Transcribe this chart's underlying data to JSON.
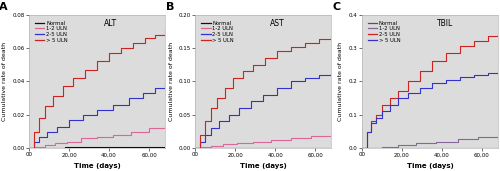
{
  "panels": [
    "A",
    "B",
    "C"
  ],
  "panel_keys": [
    "ALT",
    "AST",
    "TBIL"
  ],
  "xlabel": "Time (days)",
  "ylabel": "Cumulative rate of death",
  "xmax": 68000,
  "xmin": 0,
  "xticks": [
    0,
    20000,
    40000,
    60000
  ],
  "xticklabels": [
    "00",
    "20,00",
    "40,00",
    "60,00"
  ],
  "panel_bg": "#dcdcdc",
  "fig_bg": "#ffffff",
  "ALT": {
    "ylim": [
      0,
      0.08
    ],
    "yticks": [
      0.0,
      0.02,
      0.04,
      0.06,
      0.08
    ],
    "yticklabels": [
      "0.00",
      "0.02",
      "0.04",
      "0.06",
      "0.08"
    ],
    "legend_labels": [
      "Normal",
      "1-2 ULN",
      "2-5 ULN",
      "> 5 ULN"
    ],
    "colors": [
      "#111111",
      "#dd6699",
      "#3333cc",
      "#cc2222"
    ],
    "curves": {
      "Normal": {
        "x": [
          0,
          3000,
          8000,
          12000,
          18000,
          25000,
          33000,
          42000,
          52000,
          62000,
          68000
        ],
        "y": [
          0,
          0.0002,
          0.0003,
          0.0004,
          0.0005,
          0.0006,
          0.0007,
          0.0008,
          0.0009,
          0.001,
          0.001
        ]
      },
      "1-2 ULN": {
        "x": [
          0,
          3000,
          8000,
          13000,
          19000,
          26000,
          34000,
          42000,
          51000,
          60000,
          68000
        ],
        "y": [
          0,
          0.001,
          0.002,
          0.003,
          0.004,
          0.006,
          0.007,
          0.008,
          0.01,
          0.012,
          0.014
        ]
      },
      "2-5 ULN": {
        "x": [
          0,
          2500,
          5000,
          9000,
          14000,
          20000,
          27000,
          34000,
          42000,
          50000,
          57000,
          63000,
          68000
        ],
        "y": [
          0,
          0.004,
          0.007,
          0.01,
          0.013,
          0.017,
          0.02,
          0.023,
          0.026,
          0.03,
          0.033,
          0.036,
          0.04
        ]
      },
      "> 5 ULN": {
        "x": [
          0,
          2500,
          5000,
          8000,
          12000,
          17000,
          22000,
          28000,
          34000,
          40000,
          46000,
          52000,
          58000,
          63000,
          68000
        ],
        "y": [
          0,
          0.01,
          0.018,
          0.025,
          0.031,
          0.037,
          0.042,
          0.047,
          0.052,
          0.057,
          0.06,
          0.063,
          0.066,
          0.068,
          0.072
        ]
      }
    }
  },
  "AST": {
    "ylim": [
      0,
      0.2
    ],
    "yticks": [
      0.0,
      0.05,
      0.1,
      0.15,
      0.2
    ],
    "yticklabels": [
      "0.00",
      "0.05",
      "0.10",
      "0.15",
      "0.20"
    ],
    "legend_labels": [
      "Normal",
      "1-2 ULN",
      "2-5 ULN",
      "> 5 ULN"
    ],
    "colors": [
      "#111111",
      "#dd6699",
      "#3333cc",
      "#cc2222"
    ],
    "curves": {
      "Normal": {
        "x": [
          0,
          68000
        ],
        "y": [
          0,
          0.0005
        ]
      },
      "1-2 ULN": {
        "x": [
          0,
          3000,
          8000,
          14000,
          21000,
          29000,
          38000,
          48000,
          58000,
          68000
        ],
        "y": [
          0,
          0.002,
          0.004,
          0.006,
          0.008,
          0.01,
          0.013,
          0.016,
          0.019,
          0.022
        ]
      },
      "2-5 ULN": {
        "x": [
          0,
          2500,
          5000,
          8000,
          12000,
          17000,
          22000,
          28000,
          34000,
          41000,
          48000,
          55000,
          62000,
          68000
        ],
        "y": [
          0,
          0.01,
          0.02,
          0.03,
          0.04,
          0.05,
          0.06,
          0.07,
          0.08,
          0.09,
          0.1,
          0.105,
          0.11,
          0.113
        ]
      },
      "> 5 ULN": {
        "x": [
          0,
          2500,
          5000,
          8000,
          11000,
          15000,
          19000,
          24000,
          29000,
          35000,
          41000,
          48000,
          55000,
          62000,
          68000
        ],
        "y": [
          0,
          0.02,
          0.04,
          0.06,
          0.075,
          0.09,
          0.105,
          0.115,
          0.125,
          0.135,
          0.145,
          0.152,
          0.158,
          0.163,
          0.168
        ]
      }
    }
  },
  "TBIL": {
    "ylim": [
      0,
      0.4
    ],
    "yticks": [
      0.0,
      0.1,
      0.2,
      0.3,
      0.4
    ],
    "yticklabels": [
      "0.0",
      "0.1",
      "0.2",
      "0.3",
      "0.4"
    ],
    "legend_labels": [
      "Normal",
      "1-2 ULN",
      "2-5 ULN",
      "> 5 ULN"
    ],
    "colors": [
      "#555555",
      "#886699",
      "#cc2222",
      "#3333cc"
    ],
    "curves": {
      "Normal": {
        "x": [
          0,
          68000
        ],
        "y": [
          0,
          0.004
        ]
      },
      "1-2 ULN": {
        "x": [
          0,
          4000,
          10000,
          18000,
          27000,
          37000,
          48000,
          58000,
          68000
        ],
        "y": [
          0,
          0.002,
          0.005,
          0.01,
          0.015,
          0.02,
          0.028,
          0.033,
          0.04
        ]
      },
      "2-5 ULN": {
        "x": [
          0,
          2500,
          4500,
          7000,
          10000,
          14000,
          18000,
          23000,
          29000,
          35000,
          42000,
          49000,
          56000,
          63000,
          68000
        ],
        "y": [
          0,
          0.05,
          0.08,
          0.1,
          0.13,
          0.15,
          0.17,
          0.2,
          0.23,
          0.26,
          0.285,
          0.305,
          0.32,
          0.335,
          0.345
        ]
      },
      "> 5 ULN": {
        "x": [
          0,
          2500,
          4500,
          7000,
          10000,
          14000,
          18000,
          23000,
          29000,
          35000,
          42000,
          49000,
          56000,
          63000,
          68000
        ],
        "y": [
          0,
          0.05,
          0.075,
          0.09,
          0.11,
          0.13,
          0.15,
          0.165,
          0.18,
          0.195,
          0.205,
          0.213,
          0.22,
          0.225,
          0.23
        ]
      }
    }
  }
}
